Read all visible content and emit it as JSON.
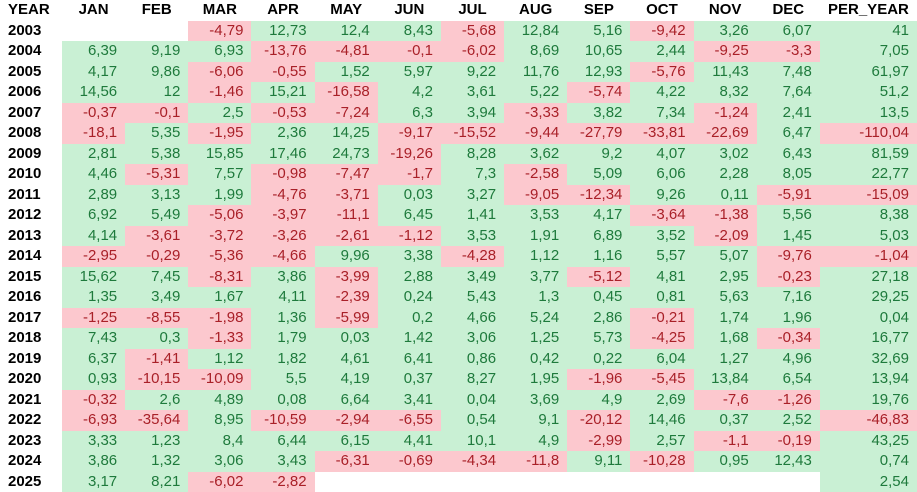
{
  "table": {
    "columns": [
      "YEAR",
      "JAN",
      "FEB",
      "MAR",
      "APR",
      "MAY",
      "JUN",
      "JUL",
      "AUG",
      "SEP",
      "OCT",
      "NOV",
      "DEC",
      "PER_YEAR"
    ],
    "rows": [
      {
        "year": "2003",
        "cells": [
          "",
          "",
          "-4,79",
          "12,73",
          "12,4",
          "8,43",
          "-5,68",
          "12,84",
          "5,16",
          "-9,42",
          "3,26",
          "6,07",
          "41"
        ]
      },
      {
        "year": "2004",
        "cells": [
          "6,39",
          "9,19",
          "6,93",
          "-13,76",
          "-4,81",
          "-0,1",
          "-6,02",
          "8,69",
          "10,65",
          "2,44",
          "-9,25",
          "-3,3",
          "7,05"
        ]
      },
      {
        "year": "2005",
        "cells": [
          "4,17",
          "9,86",
          "-6,06",
          "-0,55",
          "1,52",
          "5,97",
          "9,22",
          "11,76",
          "12,93",
          "-5,76",
          "11,43",
          "7,48",
          "61,97"
        ]
      },
      {
        "year": "2006",
        "cells": [
          "14,56",
          "12",
          "-1,46",
          "15,21",
          "-16,58",
          "4,2",
          "3,61",
          "5,22",
          "-5,74",
          "4,22",
          "8,32",
          "7,64",
          "51,2"
        ]
      },
      {
        "year": "2007",
        "cells": [
          "-0,37",
          "-0,1",
          "2,5",
          "-0,53",
          "-7,24",
          "6,3",
          "3,94",
          "-3,33",
          "3,82",
          "7,34",
          "-1,24",
          "2,41",
          "13,5"
        ]
      },
      {
        "year": "2008",
        "cells": [
          "-18,1",
          "5,35",
          "-1,95",
          "2,36",
          "14,25",
          "-9,17",
          "-15,52",
          "-9,44",
          "-27,79",
          "-33,81",
          "-22,69",
          "6,47",
          "-110,04"
        ]
      },
      {
        "year": "2009",
        "cells": [
          "2,81",
          "5,38",
          "15,85",
          "17,46",
          "24,73",
          "-19,26",
          "8,28",
          "3,62",
          "9,2",
          "4,07",
          "3,02",
          "6,43",
          "81,59"
        ]
      },
      {
        "year": "2010",
        "cells": [
          "4,46",
          "-5,31",
          "7,57",
          "-0,98",
          "-7,47",
          "-1,7",
          "7,3",
          "-2,58",
          "5,09",
          "6,06",
          "2,28",
          "8,05",
          "22,77"
        ]
      },
      {
        "year": "2011",
        "cells": [
          "2,89",
          "3,13",
          "1,99",
          "-4,76",
          "-3,71",
          "0,03",
          "3,27",
          "-9,05",
          "-12,34",
          "9,26",
          "0,11",
          "-5,91",
          "-15,09"
        ]
      },
      {
        "year": "2012",
        "cells": [
          "6,92",
          "5,49",
          "-5,06",
          "-3,97",
          "-11,1",
          "6,45",
          "1,41",
          "3,53",
          "4,17",
          "-3,64",
          "-1,38",
          "5,56",
          "8,38"
        ]
      },
      {
        "year": "2013",
        "cells": [
          "4,14",
          "-3,61",
          "-3,72",
          "-3,26",
          "-2,61",
          "-1,12",
          "3,53",
          "1,91",
          "6,89",
          "3,52",
          "-2,09",
          "1,45",
          "5,03"
        ]
      },
      {
        "year": "2014",
        "cells": [
          "-2,95",
          "-0,29",
          "-5,36",
          "-4,66",
          "9,96",
          "3,38",
          "-4,28",
          "1,12",
          "1,16",
          "5,57",
          "5,07",
          "-9,76",
          "-1,04"
        ]
      },
      {
        "year": "2015",
        "cells": [
          "15,62",
          "7,45",
          "-8,31",
          "3,86",
          "-3,99",
          "2,88",
          "3,49",
          "3,77",
          "-5,12",
          "4,81",
          "2,95",
          "-0,23",
          "27,18"
        ]
      },
      {
        "year": "2016",
        "cells": [
          "1,35",
          "3,49",
          "1,67",
          "4,11",
          "-2,39",
          "0,24",
          "5,43",
          "1,3",
          "0,45",
          "0,81",
          "5,63",
          "7,16",
          "29,25"
        ]
      },
      {
        "year": "2017",
        "cells": [
          "-1,25",
          "-8,55",
          "-1,98",
          "1,36",
          "-5,99",
          "0,2",
          "4,66",
          "5,24",
          "2,86",
          "-0,21",
          "1,74",
          "1,96",
          "0,04"
        ]
      },
      {
        "year": "2018",
        "cells": [
          "7,43",
          "0,3",
          "-1,33",
          "1,79",
          "0,03",
          "1,42",
          "3,06",
          "1,25",
          "5,73",
          "-4,25",
          "1,68",
          "-0,34",
          "16,77"
        ]
      },
      {
        "year": "2019",
        "cells": [
          "6,37",
          "-1,41",
          "1,12",
          "1,82",
          "4,61",
          "6,41",
          "0,86",
          "0,42",
          "0,22",
          "6,04",
          "1,27",
          "4,96",
          "32,69"
        ]
      },
      {
        "year": "2020",
        "cells": [
          "0,93",
          "-10,15",
          "-10,09",
          "5,5",
          "4,19",
          "0,37",
          "8,27",
          "1,95",
          "-1,96",
          "-5,45",
          "13,84",
          "6,54",
          "13,94"
        ]
      },
      {
        "year": "2021",
        "cells": [
          "-0,32",
          "2,6",
          "4,89",
          "0,08",
          "6,64",
          "3,41",
          "0,04",
          "3,69",
          "4,9",
          "2,69",
          "-7,6",
          "-1,26",
          "19,76"
        ]
      },
      {
        "year": "2022",
        "cells": [
          "-6,93",
          "-35,64",
          "8,95",
          "-10,59",
          "-2,94",
          "-6,55",
          "0,54",
          "9,1",
          "-20,12",
          "14,46",
          "0,37",
          "2,52",
          "-46,83"
        ]
      },
      {
        "year": "2023",
        "cells": [
          "3,33",
          "1,23",
          "8,4",
          "6,44",
          "6,15",
          "4,41",
          "10,1",
          "4,9",
          "-2,99",
          "2,57",
          "-1,1",
          "-0,19",
          "43,25"
        ]
      },
      {
        "year": "2024",
        "cells": [
          "3,86",
          "1,32",
          "3,06",
          "3,43",
          "-6,31",
          "-0,69",
          "-4,34",
          "-11,8",
          "9,11",
          "-10,28",
          "0,95",
          "12,43",
          "0,74"
        ]
      },
      {
        "year": "2025",
        "cells": [
          "3,17",
          "8,21",
          "-6,02",
          "-2,82",
          "",
          "",
          "",
          "",
          "",
          "",
          "",
          "",
          "2,54"
        ]
      }
    ],
    "colors": {
      "positive_bg": "#c9f0d4",
      "positive_text": "#1e7a3c",
      "negative_bg": "#fcc8ce",
      "negative_text": "#a92028"
    }
  },
  "chart_data": {
    "type": "table",
    "columns": [
      "YEAR",
      "JAN",
      "FEB",
      "MAR",
      "APR",
      "MAY",
      "JUN",
      "JUL",
      "AUG",
      "SEP",
      "OCT",
      "NOV",
      "DEC",
      "PER_YEAR"
    ],
    "number_format": "comma-decimal",
    "color_coding": {
      "positive": "green",
      "negative": "red",
      "empty": "white"
    },
    "rows": [
      {
        "year": 2003,
        "monthly": [
          null,
          null,
          -4.79,
          12.73,
          12.4,
          8.43,
          -5.68,
          12.84,
          5.16,
          -9.42,
          3.26,
          6.07
        ],
        "per_year": 41
      },
      {
        "year": 2004,
        "monthly": [
          6.39,
          9.19,
          6.93,
          -13.76,
          -4.81,
          -0.1,
          -6.02,
          8.69,
          10.65,
          2.44,
          -9.25,
          -3.3
        ],
        "per_year": 7.05
      },
      {
        "year": 2005,
        "monthly": [
          4.17,
          9.86,
          -6.06,
          -0.55,
          1.52,
          5.97,
          9.22,
          11.76,
          12.93,
          -5.76,
          11.43,
          7.48
        ],
        "per_year": 61.97
      },
      {
        "year": 2006,
        "monthly": [
          14.56,
          12,
          -1.46,
          15.21,
          -16.58,
          4.2,
          3.61,
          5.22,
          -5.74,
          4.22,
          8.32,
          7.64
        ],
        "per_year": 51.2
      },
      {
        "year": 2007,
        "monthly": [
          -0.37,
          -0.1,
          2.5,
          -0.53,
          -7.24,
          6.3,
          3.94,
          -3.33,
          3.82,
          7.34,
          -1.24,
          2.41
        ],
        "per_year": 13.5
      },
      {
        "year": 2008,
        "monthly": [
          -18.1,
          5.35,
          -1.95,
          2.36,
          14.25,
          -9.17,
          -15.52,
          -9.44,
          -27.79,
          -33.81,
          -22.69,
          6.47
        ],
        "per_year": -110.04
      },
      {
        "year": 2009,
        "monthly": [
          2.81,
          5.38,
          15.85,
          17.46,
          24.73,
          -19.26,
          8.28,
          3.62,
          9.2,
          4.07,
          3.02,
          6.43
        ],
        "per_year": 81.59
      },
      {
        "year": 2010,
        "monthly": [
          4.46,
          -5.31,
          7.57,
          -0.98,
          -7.47,
          -1.7,
          7.3,
          -2.58,
          5.09,
          6.06,
          2.28,
          8.05
        ],
        "per_year": 22.77
      },
      {
        "year": 2011,
        "monthly": [
          2.89,
          3.13,
          1.99,
          -4.76,
          -3.71,
          0.03,
          3.27,
          -9.05,
          -12.34,
          9.26,
          0.11,
          -5.91
        ],
        "per_year": -15.09
      },
      {
        "year": 2012,
        "monthly": [
          6.92,
          5.49,
          -5.06,
          -3.97,
          -11.1,
          6.45,
          1.41,
          3.53,
          4.17,
          -3.64,
          -1.38,
          5.56
        ],
        "per_year": 8.38
      },
      {
        "year": 2013,
        "monthly": [
          4.14,
          -3.61,
          -3.72,
          -3.26,
          -2.61,
          -1.12,
          3.53,
          1.91,
          6.89,
          3.52,
          -2.09,
          1.45
        ],
        "per_year": 5.03
      },
      {
        "year": 2014,
        "monthly": [
          -2.95,
          -0.29,
          -5.36,
          -4.66,
          9.96,
          3.38,
          -4.28,
          1.12,
          1.16,
          5.57,
          5.07,
          -9.76
        ],
        "per_year": -1.04
      },
      {
        "year": 2015,
        "monthly": [
          15.62,
          7.45,
          -8.31,
          3.86,
          -3.99,
          2.88,
          3.49,
          3.77,
          -5.12,
          4.81,
          2.95,
          -0.23
        ],
        "per_year": 27.18
      },
      {
        "year": 2016,
        "monthly": [
          1.35,
          3.49,
          1.67,
          4.11,
          -2.39,
          0.24,
          5.43,
          1.3,
          0.45,
          0.81,
          5.63,
          7.16
        ],
        "per_year": 29.25
      },
      {
        "year": 2017,
        "monthly": [
          -1.25,
          -8.55,
          -1.98,
          1.36,
          -5.99,
          0.2,
          4.66,
          5.24,
          2.86,
          -0.21,
          1.74,
          1.96
        ],
        "per_year": 0.04
      },
      {
        "year": 2018,
        "monthly": [
          7.43,
          0.3,
          -1.33,
          1.79,
          0.03,
          1.42,
          3.06,
          1.25,
          5.73,
          -4.25,
          1.68,
          -0.34
        ],
        "per_year": 16.77
      },
      {
        "year": 2019,
        "monthly": [
          6.37,
          -1.41,
          1.12,
          1.82,
          4.61,
          6.41,
          0.86,
          0.42,
          0.22,
          6.04,
          1.27,
          4.96
        ],
        "per_year": 32.69
      },
      {
        "year": 2020,
        "monthly": [
          0.93,
          -10.15,
          -10.09,
          5.5,
          4.19,
          0.37,
          8.27,
          1.95,
          -1.96,
          -5.45,
          13.84,
          6.54
        ],
        "per_year": 13.94
      },
      {
        "year": 2021,
        "monthly": [
          -0.32,
          2.6,
          4.89,
          0.08,
          6.64,
          3.41,
          0.04,
          3.69,
          4.9,
          2.69,
          -7.6,
          -1.26
        ],
        "per_year": 19.76
      },
      {
        "year": 2022,
        "monthly": [
          -6.93,
          -35.64,
          8.95,
          -10.59,
          -2.94,
          -6.55,
          0.54,
          9.1,
          -20.12,
          14.46,
          0.37,
          2.52
        ],
        "per_year": -46.83
      },
      {
        "year": 2023,
        "monthly": [
          3.33,
          1.23,
          8.4,
          6.44,
          6.15,
          4.41,
          10.1,
          4.9,
          -2.99,
          2.57,
          -1.1,
          -0.19
        ],
        "per_year": 43.25
      },
      {
        "year": 2024,
        "monthly": [
          3.86,
          1.32,
          3.06,
          3.43,
          -6.31,
          -0.69,
          -4.34,
          -11.8,
          9.11,
          -10.28,
          0.95,
          12.43
        ],
        "per_year": 0.74
      },
      {
        "year": 2025,
        "monthly": [
          3.17,
          8.21,
          -6.02,
          -2.82,
          null,
          null,
          null,
          null,
          null,
          null,
          null,
          null
        ],
        "per_year": 2.54
      }
    ]
  }
}
